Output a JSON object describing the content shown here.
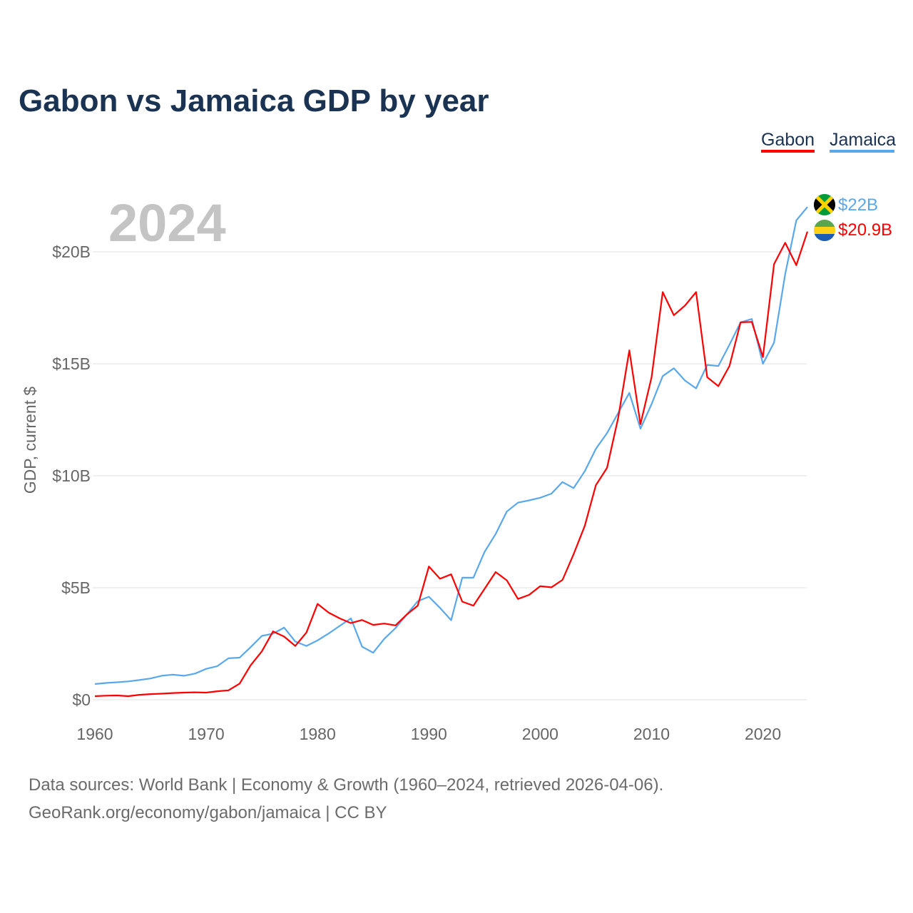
{
  "chart_data": {
    "type": "line",
    "title": "Gabon vs Jamaica GDP by year",
    "xlabel": "",
    "ylabel": "GDP, current $",
    "xlim": [
      1960,
      2024
    ],
    "ylim": [
      0,
      20
    ],
    "x_ticks": [
      1960,
      1970,
      1980,
      1990,
      2000,
      2010,
      2020
    ],
    "y_ticks": [
      0,
      5,
      10,
      15,
      20
    ],
    "y_tick_labels": [
      "$0",
      "$5B",
      "$10B",
      "$15B",
      "$20B"
    ],
    "grid": true,
    "legend_placement": "top-right",
    "year_label": "2024",
    "x": [
      1960,
      1961,
      1962,
      1963,
      1964,
      1965,
      1966,
      1967,
      1968,
      1969,
      1970,
      1971,
      1972,
      1973,
      1974,
      1975,
      1976,
      1977,
      1978,
      1979,
      1980,
      1981,
      1982,
      1983,
      1984,
      1985,
      1986,
      1987,
      1988,
      1989,
      1990,
      1991,
      1992,
      1993,
      1994,
      1995,
      1996,
      1997,
      1998,
      1999,
      2000,
      2001,
      2002,
      2003,
      2004,
      2005,
      2006,
      2007,
      2008,
      2009,
      2010,
      2011,
      2012,
      2013,
      2014,
      2015,
      2016,
      2017,
      2018,
      2019,
      2020,
      2021,
      2022,
      2023,
      2024
    ],
    "series": [
      {
        "name": "Gabon",
        "color": "#ff0000",
        "end_label": "$20.9B",
        "values": [
          0.16,
          0.18,
          0.19,
          0.16,
          0.22,
          0.25,
          0.27,
          0.3,
          0.32,
          0.33,
          0.32,
          0.38,
          0.42,
          0.72,
          1.54,
          2.16,
          3.05,
          2.82,
          2.4,
          3.0,
          4.28,
          3.89,
          3.63,
          3.42,
          3.56,
          3.34,
          3.4,
          3.32,
          3.8,
          4.2,
          5.95,
          5.4,
          5.6,
          4.38,
          4.2,
          4.95,
          5.7,
          5.33,
          4.5,
          4.68,
          5.07,
          5.02,
          5.35,
          6.5,
          7.76,
          9.58,
          10.35,
          12.57,
          15.6,
          12.3,
          14.4,
          18.2,
          17.17,
          17.6,
          18.2,
          14.4,
          14.0,
          14.9,
          16.85,
          16.87,
          15.3,
          19.45,
          20.4,
          19.4,
          20.9
        ]
      },
      {
        "name": "Jamaica",
        "color": "#5aa8ec",
        "end_label": "$22B",
        "values": [
          0.7,
          0.75,
          0.78,
          0.82,
          0.88,
          0.95,
          1.07,
          1.12,
          1.07,
          1.17,
          1.38,
          1.5,
          1.85,
          1.88,
          2.35,
          2.85,
          2.95,
          3.22,
          2.6,
          2.4,
          2.65,
          2.96,
          3.3,
          3.63,
          2.37,
          2.1,
          2.72,
          3.2,
          3.8,
          4.4,
          4.6,
          4.1,
          3.55,
          5.45,
          5.45,
          6.6,
          7.4,
          8.4,
          8.8,
          8.9,
          9.02,
          9.2,
          9.72,
          9.45,
          10.2,
          11.2,
          11.9,
          12.8,
          13.7,
          12.1,
          13.2,
          14.45,
          14.8,
          14.25,
          13.9,
          14.95,
          14.9,
          15.85,
          16.85,
          17.0,
          15.0,
          15.95,
          19.0,
          21.4,
          22.0
        ]
      }
    ]
  },
  "footer": {
    "line1": "Data sources: World Bank | Economy & Growth (1960–2024, retrieved 2026-04-06).",
    "line2": "GeoRank.org/economy/gabon/jamaica | CC BY"
  }
}
